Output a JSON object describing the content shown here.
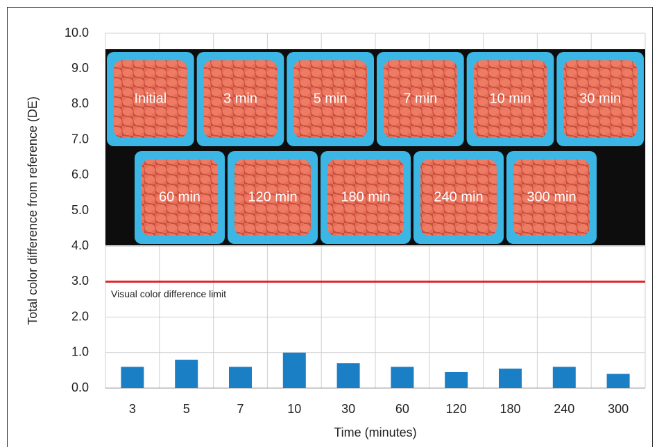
{
  "chart_data": {
    "type": "bar",
    "y_label": "Total color difference from reference (DE)",
    "x_label": "Time (minutes)",
    "categories": [
      "3",
      "5",
      "7",
      "10",
      "30",
      "60",
      "120",
      "180",
      "240",
      "300"
    ],
    "values": [
      0.6,
      0.8,
      0.6,
      1.0,
      0.7,
      0.6,
      0.45,
      0.55,
      0.6,
      0.4
    ],
    "color": "#1b7fc6",
    "ylim": [
      0,
      10
    ],
    "yticks": [
      {
        "value": 0,
        "label": "0.0"
      },
      {
        "value": 1,
        "label": "1.0"
      },
      {
        "value": 2,
        "label": "2.0"
      },
      {
        "value": 3,
        "label": "3.0"
      },
      {
        "value": 4,
        "label": "4.0"
      },
      {
        "value": 5,
        "label": "5.0"
      },
      {
        "value": 6,
        "label": "6.0"
      },
      {
        "value": 7,
        "label": "7.0"
      },
      {
        "value": 8,
        "label": "8.0"
      },
      {
        "value": 9,
        "label": "9.0"
      },
      {
        "value": 10,
        "label": "10.0"
      }
    ],
    "grid": true,
    "threshold": {
      "value": 3,
      "label": "Visual color difference limit",
      "color": "#e0252a"
    },
    "photo_rows": [
      [
        "Initial",
        "3 min",
        "5 min",
        "7 min",
        "10 min",
        "30 min"
      ],
      [
        "60 min",
        "120 min",
        "180 min",
        "240 min",
        "300 min"
      ]
    ]
  }
}
